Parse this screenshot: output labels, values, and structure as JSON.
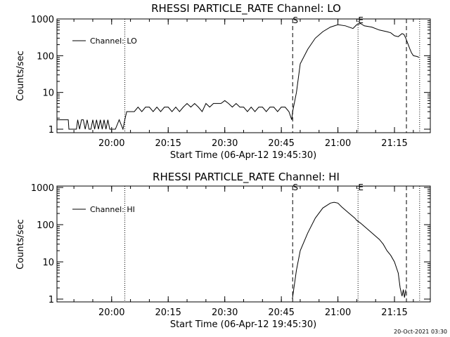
{
  "timestamp": "20-Oct-2021 03:30",
  "chart_data": [
    {
      "type": "line",
      "title": "RHESSI PARTICLE_RATE Channel: LO",
      "xlabel": "Start Time (06-Apr-12 19:45:30)",
      "ylabel": "Counts/sec",
      "yscale": "log",
      "xlim": [
        "19:45:30",
        "21:24:30"
      ],
      "ylim": [
        1,
        1000
      ],
      "x_ticks": [
        "20:00",
        "20:15",
        "20:30",
        "20:45",
        "21:00",
        "21:15"
      ],
      "y_ticks": [
        "1",
        "10",
        "100",
        "1000"
      ],
      "legend": {
        "position": "top-left",
        "entries": [
          "Channel: LO"
        ]
      },
      "markers": [
        {
          "label": "S",
          "time": "20:48:00",
          "style": "dashed"
        },
        {
          "label": "E",
          "time": "21:05:20",
          "style": "dotted"
        },
        {
          "label": "",
          "time": "20:03:30",
          "style": "dotted"
        },
        {
          "label": "",
          "time": "21:18:10",
          "style": "dashed"
        },
        {
          "label": "",
          "time": "21:21:40",
          "style": "dotted"
        }
      ],
      "series": [
        {
          "name": "Channel: LO",
          "x": [
            "19:45:30",
            "19:48:30",
            "19:48:40",
            "19:50:40",
            "19:51:00",
            "19:51:30",
            "19:52:00",
            "19:52:30",
            "19:53:00",
            "19:53:30",
            "19:54:00",
            "19:54:30",
            "19:55:00",
            "19:55:30",
            "19:56:00",
            "19:56:30",
            "19:57:00",
            "19:57:30",
            "19:58:00",
            "19:58:30",
            "19:59:00",
            "19:59:30",
            "20:00:00",
            "20:01:00",
            "20:02:00",
            "20:03:00",
            "20:03:30",
            "20:04:00",
            "20:06:00",
            "20:07:00",
            "20:08:00",
            "20:09:00",
            "20:10:00",
            "20:11:00",
            "20:12:00",
            "20:13:00",
            "20:14:00",
            "20:15:00",
            "20:16:00",
            "20:17:00",
            "20:18:00",
            "20:19:00",
            "20:20:00",
            "20:21:00",
            "20:22:00",
            "20:23:00",
            "20:24:00",
            "20:25:00",
            "20:26:00",
            "20:27:00",
            "20:28:00",
            "20:29:00",
            "20:30:00",
            "20:31:00",
            "20:32:00",
            "20:33:00",
            "20:34:00",
            "20:35:00",
            "20:36:00",
            "20:37:00",
            "20:38:00",
            "20:39:00",
            "20:40:00",
            "20:41:00",
            "20:42:00",
            "20:43:00",
            "20:44:00",
            "20:45:00",
            "20:46:00",
            "20:47:00",
            "20:47:45",
            "20:48:00",
            "20:49:00",
            "20:50:00",
            "20:52:00",
            "20:54:00",
            "20:56:00",
            "20:58:00",
            "21:00:00",
            "21:02:00",
            "21:04:00",
            "21:05:00",
            "21:06:00",
            "21:07:00",
            "21:09:00",
            "21:11:00",
            "21:13:00",
            "21:14:00",
            "21:15:00",
            "21:16:00",
            "21:17:00",
            "21:17:30",
            "21:18:00",
            "21:18:30",
            "21:19:00",
            "21:19:30",
            "21:20:00",
            "21:21:00",
            "21:21:30"
          ],
          "y": [
            1.8,
            1.8,
            1,
            1,
            1.8,
            1,
            1.8,
            1.8,
            1,
            1.8,
            1,
            1,
            1.8,
            1,
            1.8,
            1,
            1.8,
            1,
            1.8,
            1,
            1.8,
            1,
            1,
            1,
            1.8,
            1,
            1.8,
            3,
            3,
            4,
            3,
            4,
            4,
            3,
            4,
            3,
            4,
            4,
            3,
            4,
            3,
            4,
            5,
            4,
            5,
            4,
            3,
            5,
            4,
            5,
            5,
            5,
            6,
            5,
            4,
            5,
            4,
            4,
            3,
            4,
            3,
            4,
            4,
            3,
            4,
            4,
            3,
            4,
            4,
            3,
            1.8,
            3,
            10,
            60,
            150,
            300,
            450,
            600,
            700,
            650,
            550,
            700,
            750,
            650,
            600,
            500,
            450,
            420,
            350,
            330,
            400,
            380,
            300,
            220,
            160,
            120,
            100,
            95,
            90
          ]
        }
      ]
    },
    {
      "type": "line",
      "title": "RHESSI PARTICLE_RATE Channel: HI",
      "xlabel": "Start Time (06-Apr-12 19:45:30)",
      "ylabel": "Counts/sec",
      "yscale": "log",
      "xlim": [
        "19:45:30",
        "21:24:30"
      ],
      "ylim": [
        1,
        1000
      ],
      "x_ticks": [
        "20:00",
        "20:15",
        "20:30",
        "20:45",
        "21:00",
        "21:15"
      ],
      "y_ticks": [
        "1",
        "10",
        "100",
        "1000"
      ],
      "legend": {
        "position": "top-left",
        "entries": [
          "Channel: HI"
        ]
      },
      "markers": [
        {
          "label": "S",
          "time": "20:48:00",
          "style": "dashed"
        },
        {
          "label": "E",
          "time": "21:05:20",
          "style": "dotted"
        },
        {
          "label": "",
          "time": "20:03:30",
          "style": "dotted"
        },
        {
          "label": "",
          "time": "21:18:10",
          "style": "dashed"
        },
        {
          "label": "",
          "time": "21:21:40",
          "style": "dotted"
        }
      ],
      "series": [
        {
          "name": "Channel: HI",
          "x": [
            "20:47:55",
            "20:48:10",
            "20:49:00",
            "20:50:00",
            "20:52:00",
            "20:54:00",
            "20:56:00",
            "20:58:00",
            "20:59:00",
            "21:00:00",
            "21:01:00",
            "21:03:00",
            "21:04:30",
            "21:05:00",
            "21:06:00",
            "21:07:00",
            "21:09:00",
            "21:11:00",
            "21:12:00",
            "21:13:00",
            "21:14:00",
            "21:15:00",
            "21:16:00",
            "21:16:30",
            "21:17:00",
            "21:17:20",
            "21:17:40",
            "21:18:00"
          ],
          "y": [
            1,
            1.5,
            6,
            20,
            60,
            150,
            280,
            380,
            400,
            380,
            300,
            200,
            150,
            130,
            110,
            90,
            60,
            40,
            30,
            20,
            15,
            10,
            5,
            2,
            1.2,
            1.8,
            1.1,
            1.8
          ]
        }
      ]
    }
  ]
}
